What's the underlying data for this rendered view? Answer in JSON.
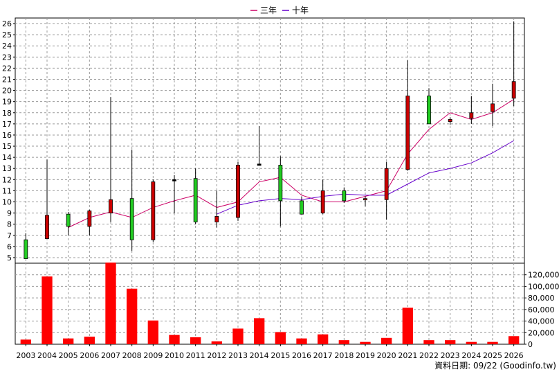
{
  "chart_data": {
    "type": "candlestick-volume",
    "title": "",
    "legend": [
      {
        "name": "三年",
        "color": "#cc0066"
      },
      {
        "name": "十年",
        "color": "#6600cc"
      }
    ],
    "legend_position": "top-center",
    "grid": true,
    "years": [
      "2003",
      "2004",
      "2005",
      "2006",
      "2007",
      "2008",
      "2009",
      "2010",
      "2011",
      "2012",
      "2013",
      "2014",
      "2015",
      "2016",
      "2017",
      "2018",
      "2019",
      "2020",
      "2021",
      "2022",
      "2023",
      "2024",
      "2025",
      "2026"
    ],
    "price_axis": {
      "min": 4.5,
      "max": 26.5,
      "ticks": [
        5,
        6,
        7,
        8,
        9,
        10,
        11,
        12,
        13,
        14,
        15,
        16,
        17,
        18,
        19,
        20,
        21,
        22,
        23,
        24,
        25,
        26
      ],
      "position": "left"
    },
    "volume_axis": {
      "min": 0,
      "max": 140000,
      "ticks": [
        0,
        20000,
        40000,
        60000,
        80000,
        100000,
        120000
      ],
      "tick_labels": [
        "0",
        "20,000",
        "40,000",
        "60,000",
        "80,000",
        "100,000",
        "120,000"
      ],
      "position": "right"
    },
    "candles": [
      {
        "year": "2003",
        "open": 6.6,
        "close": 4.9,
        "high": 7.2,
        "low": 4.9
      },
      {
        "year": "2004",
        "open": 6.7,
        "close": 8.8,
        "high": 13.8,
        "low": 6.7
      },
      {
        "year": "2005",
        "open": 8.9,
        "close": 7.8,
        "high": 9.1,
        "low": 7.0
      },
      {
        "year": "2006",
        "open": 7.8,
        "close": 9.2,
        "high": 9.3,
        "low": 7.0
      },
      {
        "year": "2007",
        "open": 9.0,
        "close": 10.2,
        "high": 19.4,
        "low": 8.2
      },
      {
        "year": "2008",
        "open": 10.3,
        "close": 6.6,
        "high": 14.7,
        "low": 5.6
      },
      {
        "year": "2009",
        "open": 6.6,
        "close": 11.8,
        "high": 12.0,
        "low": 6.4
      },
      {
        "year": "2010",
        "open": 12.0,
        "close": 12.0,
        "high": 12.4,
        "low": 9.0
      },
      {
        "year": "2011",
        "open": 12.1,
        "close": 8.2,
        "high": 13.0,
        "low": 8.0
      },
      {
        "year": "2012",
        "open": 8.2,
        "close": 8.7,
        "high": 11.0,
        "low": 7.7
      },
      {
        "year": "2013",
        "open": 8.6,
        "close": 13.3,
        "high": 13.6,
        "low": 8.3
      },
      {
        "year": "2014",
        "open": 13.4,
        "close": 13.4,
        "high": 16.8,
        "low": 13.4
      },
      {
        "year": "2015",
        "open": 13.3,
        "close": 10.1,
        "high": 14.1,
        "low": 7.8
      },
      {
        "year": "2016",
        "open": 10.1,
        "close": 8.9,
        "high": 10.5,
        "low": 8.9
      },
      {
        "year": "2017",
        "open": 9.0,
        "close": 11.0,
        "high": 12.0,
        "low": 8.9
      },
      {
        "year": "2018",
        "open": 11.0,
        "close": 10.1,
        "high": 11.3,
        "low": 9.9
      },
      {
        "year": "2019",
        "open": 10.2,
        "close": 10.3,
        "high": 10.5,
        "low": 9.6
      },
      {
        "year": "2020",
        "open": 10.2,
        "close": 13.0,
        "high": 13.6,
        "low": 8.4
      },
      {
        "year": "2021",
        "open": 12.9,
        "close": 19.5,
        "high": 22.7,
        "low": 12.8
      },
      {
        "year": "2022",
        "open": 19.5,
        "close": 17.0,
        "high": 20.2,
        "low": 17.0
      },
      {
        "year": "2023",
        "open": 17.2,
        "close": 17.4,
        "high": 17.6,
        "low": 16.9
      },
      {
        "year": "2024",
        "open": 17.5,
        "close": 18.0,
        "high": 19.5,
        "low": 17.0
      },
      {
        "year": "2025",
        "open": 18.1,
        "close": 18.8,
        "high": 20.6,
        "low": 16.8
      },
      {
        "year": "2026",
        "open": 19.3,
        "close": 20.8,
        "high": 26.2,
        "low": 18.6
      }
    ],
    "series": [
      {
        "name": "三年",
        "color": "#cc0066",
        "x": [
          "2005",
          "2006",
          "2007",
          "2008",
          "2009",
          "2010",
          "2011",
          "2012",
          "2013",
          "2014",
          "2015",
          "2016",
          "2017",
          "2018",
          "2019",
          "2020",
          "2021",
          "2022",
          "2023",
          "2024",
          "2025",
          "2026"
        ],
        "values": [
          7.7,
          8.6,
          9.1,
          8.6,
          9.5,
          10.1,
          10.6,
          9.5,
          10.0,
          11.8,
          12.2,
          10.6,
          10.0,
          10.0,
          10.5,
          11.0,
          14.3,
          16.5,
          18.0,
          17.4,
          18.0,
          19.2
        ]
      },
      {
        "name": "十年",
        "color": "#6600cc",
        "x": [
          "2012",
          "2013",
          "2014",
          "2015",
          "2016",
          "2017",
          "2018",
          "2019",
          "2020",
          "2021",
          "2022",
          "2023",
          "2024",
          "2025",
          "2026"
        ],
        "values": [
          8.9,
          9.7,
          10.1,
          10.3,
          10.2,
          10.5,
          10.7,
          10.6,
          10.6,
          11.6,
          12.6,
          13.0,
          13.5,
          14.4,
          15.5
        ]
      }
    ],
    "volumes": [
      8000,
      117000,
      10000,
      13000,
      141000,
      96000,
      41000,
      16000,
      12000,
      5000,
      27000,
      45000,
      21000,
      10000,
      17000,
      7000,
      4000,
      11000,
      63000,
      7000,
      7000,
      4000,
      4000,
      14000
    ],
    "footer": "資料日期: 09/22 (Goodinfo.tw)"
  }
}
